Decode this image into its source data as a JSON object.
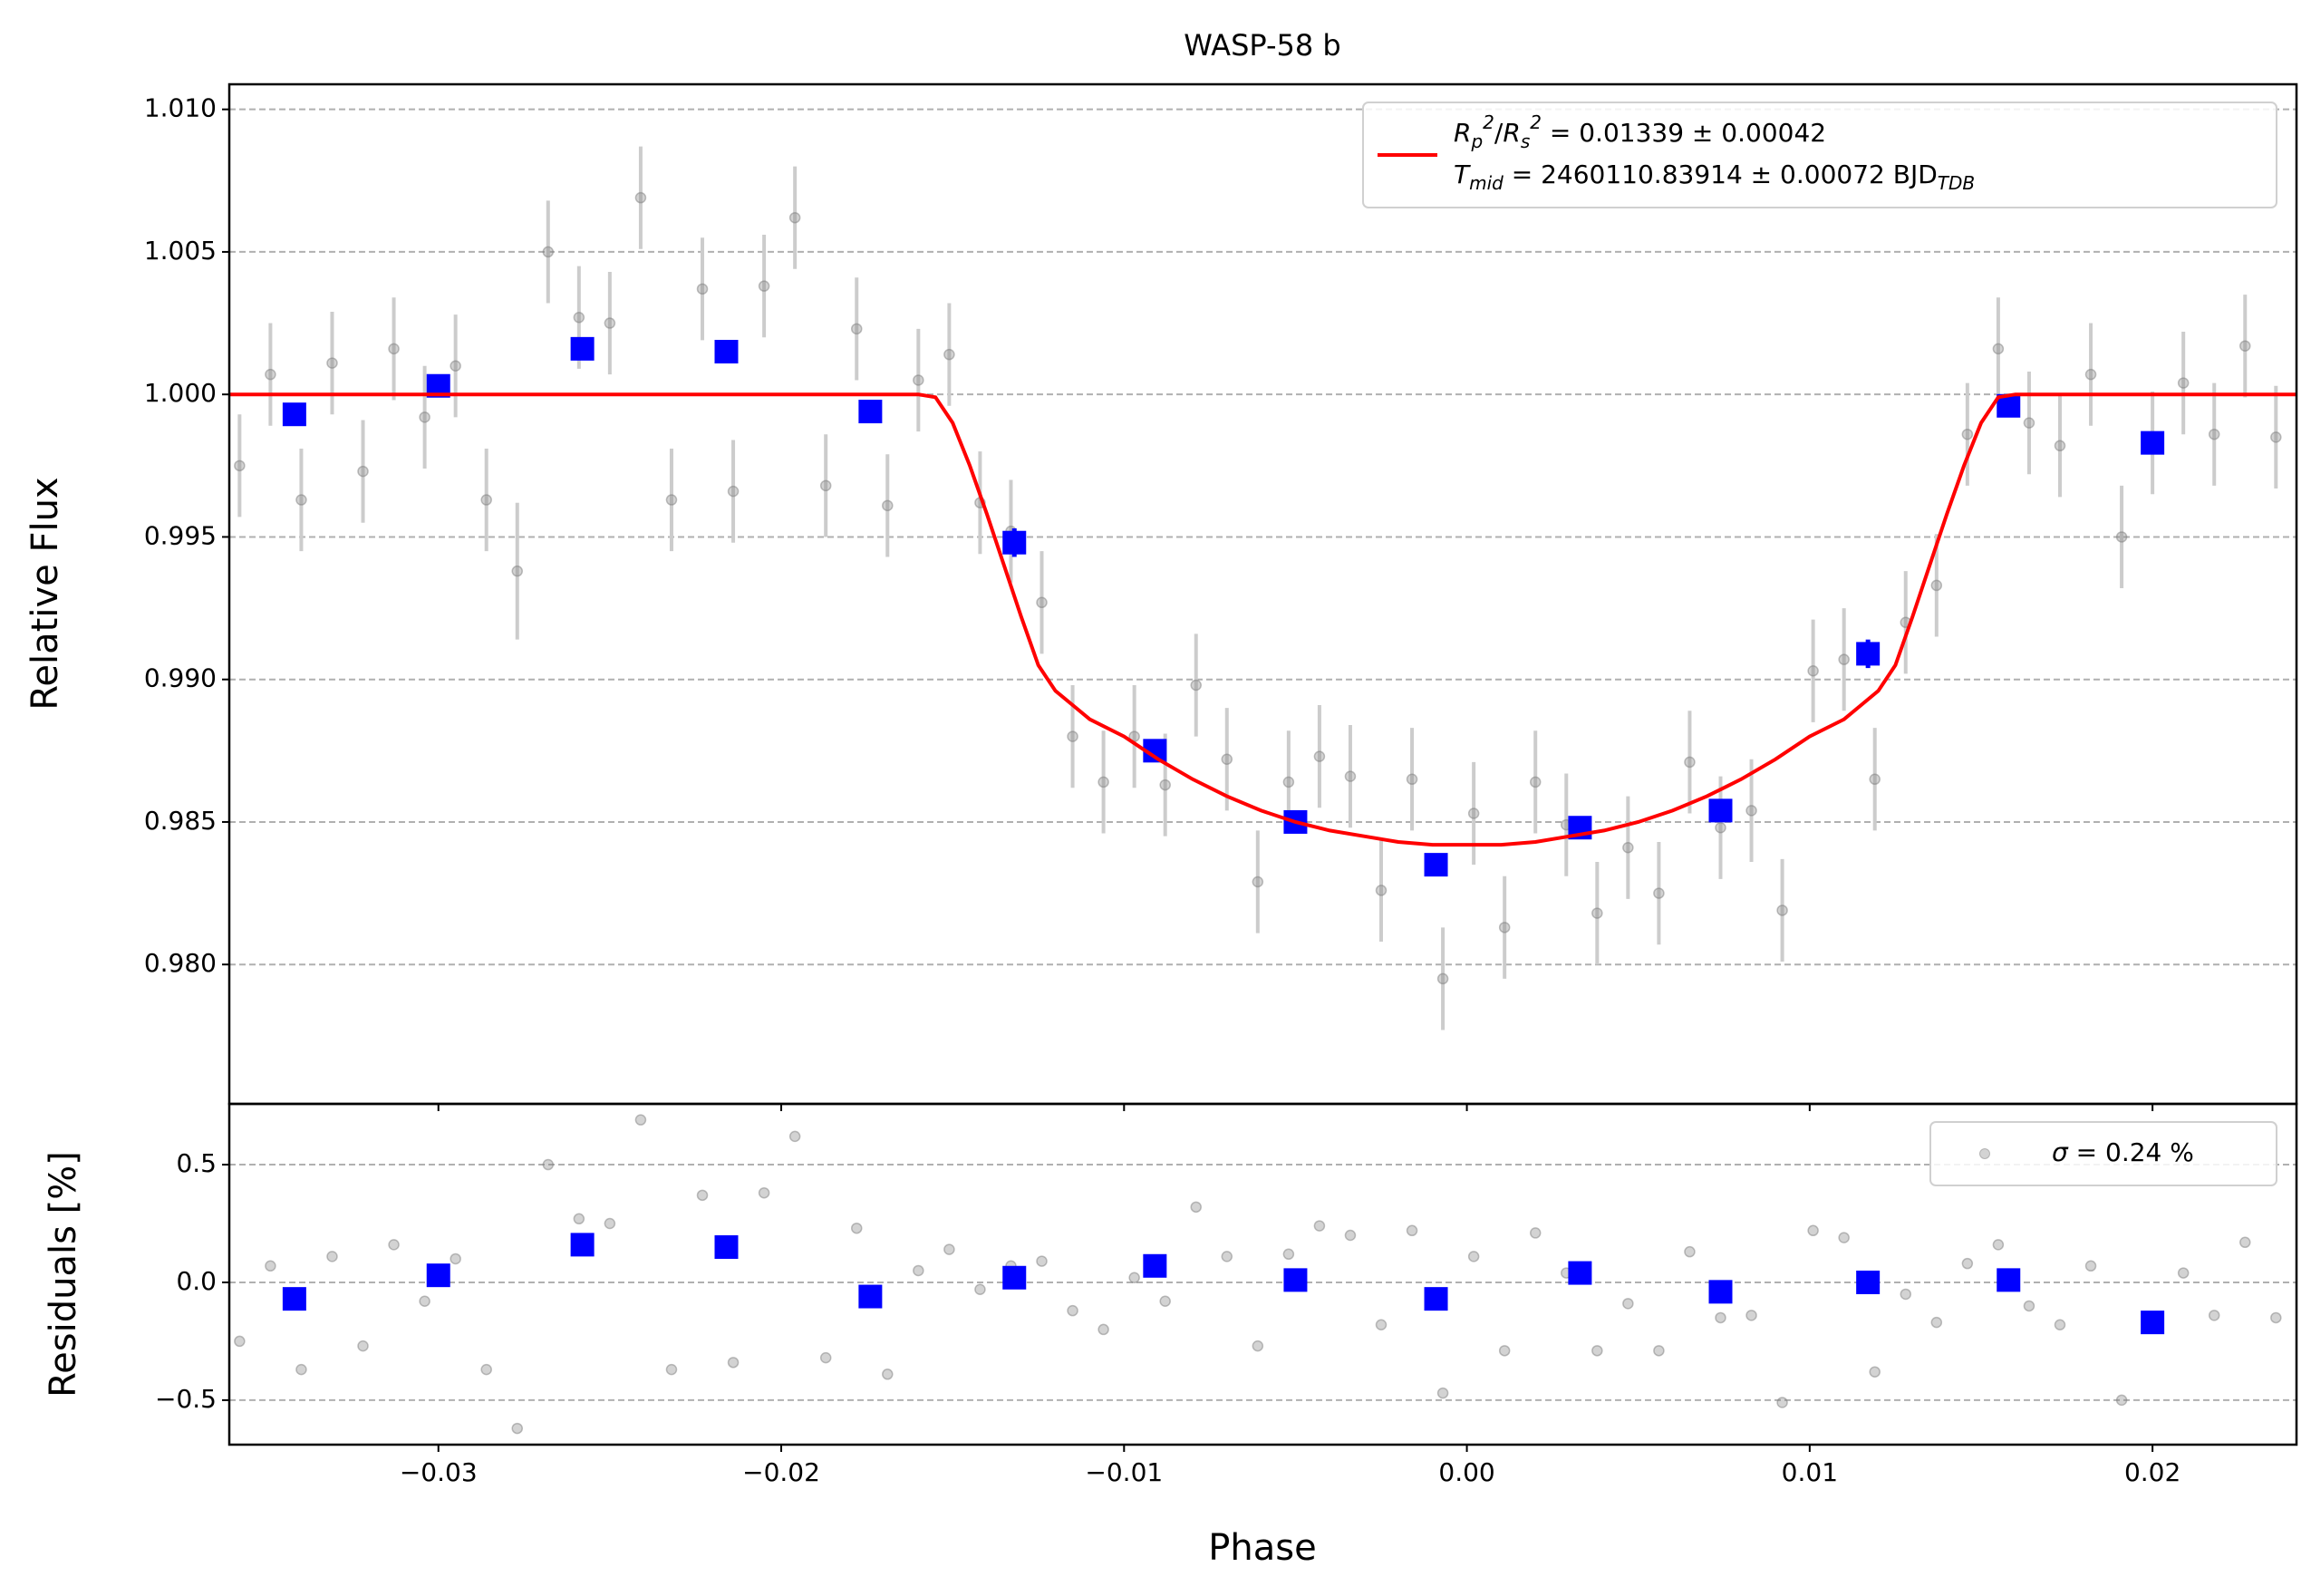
{
  "chart_data": [
    {
      "type": "scatter",
      "title": "WASP-58 b",
      "ylabel": "Relative Flux",
      "xlim": [
        -0.0361,
        0.0242
      ],
      "ylim": [
        0.97511,
        1.01088
      ],
      "xticks": [
        {
          "value": -0.03,
          "label": "−0.03"
        },
        {
          "value": -0.02,
          "label": "−0.02"
        },
        {
          "value": -0.01,
          "label": "−0.01"
        },
        {
          "value": 0,
          "label": "0.00"
        },
        0.01,
        0.02
      ],
      "yticks": [
        {
          "value": 0.98,
          "label": "0.980"
        },
        0.985,
        {
          "value": 0.99,
          "label": "0.990"
        },
        0.995,
        {
          "value": 1.0,
          "label": "1.000"
        },
        1.005,
        {
          "value": 1.01,
          "label": "1.010"
        }
      ],
      "grid": true,
      "legend": "upper right",
      "series": [
        {
          "kind": "points",
          "color": "#808080",
          "errcolor": "#cccccc",
          "x": [
            -0.0358,
            -0.0349,
            -0.034,
            -0.0331,
            -0.0322,
            -0.0313,
            -0.0304,
            -0.0295,
            -0.0286,
            -0.0277,
            -0.0268,
            -0.0259,
            -0.025,
            -0.0241,
            -0.0232,
            -0.0223,
            -0.0214,
            -0.0205,
            -0.0196,
            -0.0187,
            -0.0178,
            -0.0169,
            -0.016,
            -0.0151,
            -0.0142,
            -0.0133,
            -0.0124,
            -0.0115,
            -0.0106,
            -0.0097,
            -0.0088,
            -0.0079,
            -0.007,
            -0.0061,
            -0.0052,
            -0.0043,
            -0.0034,
            -0.0025,
            -0.0016,
            -0.0007,
            0.0002,
            0.0011,
            0.002,
            0.0029,
            0.0038,
            0.0047,
            0.0056,
            0.0065,
            0.0074,
            0.0083,
            0.0092,
            0.0101,
            0.011,
            0.0119,
            0.0128,
            0.0137,
            0.0146,
            0.0155,
            0.0164,
            0.0173,
            0.0182,
            0.0191,
            0.02,
            0.0209,
            0.0218,
            0.0227,
            0.0236
          ],
          "values": [
            0.9975,
            1.0007,
            0.9963,
            1.0011,
            0.9973,
            1.0016,
            0.9992,
            1.001,
            0.9963,
            0.9938,
            1.005,
            1.0027,
            1.0025,
            1.0069,
            0.9963,
            1.0037,
            0.9966,
            1.0038,
            1.0062,
            0.9968,
            1.0023,
            0.9961,
            1.0005,
            1.0014,
            0.9962,
            0.9952,
            0.9927,
            0.988,
            0.9864,
            0.988,
            0.9863,
            0.9898,
            0.9872,
            0.9829,
            0.9864,
            0.9873,
            0.9866,
            0.9826,
            0.9865,
            0.9795,
            0.9853,
            0.9813,
            0.9864,
            0.9849,
            0.9818,
            0.9841,
            0.9825,
            0.9871,
            0.9848,
            0.9854,
            0.9819,
            0.9903,
            0.9907,
            0.9865,
            0.992,
            0.9933,
            0.9986,
            1.0016,
            0.999,
            0.9982,
            1.0007,
            0.995,
            0.9983,
            1.0004,
            0.9986,
            1.0017,
            0.9985
          ],
          "errors": [
            0.0018,
            0.0018,
            0.0018,
            0.0018,
            0.0018,
            0.0018,
            0.0018,
            0.0018,
            0.0018,
            0.0024,
            0.0018,
            0.0018,
            0.0018,
            0.0018,
            0.0018,
            0.0018,
            0.0018,
            0.0018,
            0.0018,
            0.0018,
            0.0018,
            0.0018,
            0.0018,
            0.0018,
            0.0018,
            0.0018,
            0.0018,
            0.0018,
            0.0018,
            0.0018,
            0.0018,
            0.0018,
            0.0018,
            0.0018,
            0.0018,
            0.0018,
            0.0018,
            0.0018,
            0.0018,
            0.0018,
            0.0018,
            0.0018,
            0.0018,
            0.0018,
            0.0018,
            0.0018,
            0.0018,
            0.0018,
            0.0018,
            0.0018,
            0.0018,
            0.0018,
            0.0018,
            0.0018,
            0.0018,
            0.0018,
            0.0018,
            0.0018,
            0.0018,
            0.0018,
            0.0018,
            0.0018,
            0.0018,
            0.0018,
            0.0018,
            0.0018,
            0.0018
          ]
        },
        {
          "kind": "squares",
          "color": "#0000ff",
          "x": [
            -0.0342,
            -0.03,
            -0.0258,
            -0.0216,
            -0.0174,
            -0.0132,
            -0.0091,
            -0.005,
            -0.0009,
            0.0033,
            0.0074,
            0.0117,
            0.0158,
            0.02
          ],
          "values": [
            0.9993,
            1.0003,
            1.0016,
            1.0015,
            0.9994,
            0.9948,
            0.9875,
            0.985,
            0.9835,
            0.9848,
            0.9854,
            0.9909,
            0.9996,
            0.9983
          ],
          "errors": [
            0.0004,
            0.0004,
            0.0004,
            0.0004,
            0.0004,
            0.0005,
            0.0004,
            0.0004,
            0.0004,
            0.0004,
            0.0004,
            0.0005,
            0.0004,
            0.0004
          ]
        },
        {
          "kind": "line",
          "color": "#ff0000",
          "name": [
            [
              {
                "text": "R",
                "style": "italic"
              },
              {
                "text": "p",
                "style": "sub"
              },
              {
                "text": "2",
                "style": "sup"
              },
              {
                "text": "/",
                "style": "normal"
              },
              {
                "text": "R",
                "style": "italic"
              },
              {
                "text": "s",
                "style": "sub"
              },
              {
                "text": "2",
                "style": "sup"
              },
              {
                "text": " = 0.01339 ± 0.00042",
                "style": "normal"
              }
            ],
            [
              {
                "text": "T",
                "style": "italic"
              },
              {
                "text": "mid",
                "style": "sub"
              },
              {
                "text": " = 2460110.83914 ± 0.00072 BJD",
                "style": "normal"
              },
              {
                "text": "TDB",
                "style": "sub"
              }
            ]
          ],
          "x": [
            -0.0361,
            -0.016,
            -0.0155,
            -0.015,
            -0.0145,
            -0.014,
            -0.0135,
            -0.013,
            -0.0125,
            -0.012,
            -0.0115,
            -0.011,
            -0.01,
            -0.009,
            -0.008,
            -0.007,
            -0.006,
            -0.005,
            -0.004,
            -0.003,
            -0.002,
            -0.001,
            0,
            0.001,
            0.002,
            0.003,
            0.004,
            0.005,
            0.006,
            0.007,
            0.008,
            0.009,
            0.01,
            0.011,
            0.0115,
            0.012,
            0.0125,
            0.013,
            0.0135,
            0.014,
            0.0145,
            0.015,
            0.0155,
            0.016,
            0.0242
          ],
          "values": [
            1,
            1,
            0.9999,
            0.999,
            0.9975,
            0.9958,
            0.994,
            0.9922,
            0.9905,
            0.9896,
            0.9891,
            0.9886,
            0.988,
            0.9872,
            0.9865,
            0.9859,
            0.9854,
            0.985,
            0.9847,
            0.9845,
            0.9843,
            0.9842,
            0.9842,
            0.9842,
            0.9843,
            0.9845,
            0.9847,
            0.985,
            0.9854,
            0.9859,
            0.9865,
            0.9872,
            0.988,
            0.9886,
            0.9891,
            0.9896,
            0.9905,
            0.9922,
            0.994,
            0.9958,
            0.9975,
            0.999,
            0.9999,
            1,
            1
          ]
        }
      ]
    },
    {
      "type": "scatter",
      "xlabel": "Phase",
      "ylabel": "Residuals [%]",
      "xlim": [
        -0.0361,
        0.0242
      ],
      "ylim": [
        -0.689,
        0.758
      ],
      "xticks": [
        {
          "value": -0.03,
          "label": "−0.03"
        },
        {
          "value": -0.02,
          "label": "−0.02"
        },
        {
          "value": -0.01,
          "label": "−0.01"
        },
        {
          "value": 0,
          "label": "0.00"
        },
        0.01,
        0.02
      ],
      "yticks": [
        {
          "value": -0.5,
          "label": "−0.5"
        },
        {
          "value": 0,
          "label": "0.0"
        },
        0.5
      ],
      "grid": true,
      "legend": "upper right",
      "series": [
        {
          "kind": "points",
          "color": "#808080",
          "name": [
            [
              {
                "text": "σ",
                "style": "italic"
              },
              {
                "text": " = 0.24 %",
                "style": "normal"
              }
            ]
          ],
          "x": [
            -0.0358,
            -0.0349,
            -0.034,
            -0.0331,
            -0.0322,
            -0.0313,
            -0.0304,
            -0.0295,
            -0.0286,
            -0.0277,
            -0.0268,
            -0.0259,
            -0.025,
            -0.0241,
            -0.0232,
            -0.0223,
            -0.0214,
            -0.0205,
            -0.0196,
            -0.0187,
            -0.0178,
            -0.0169,
            -0.016,
            -0.0151,
            -0.0142,
            -0.0133,
            -0.0124,
            -0.0115,
            -0.0106,
            -0.0097,
            -0.0088,
            -0.0079,
            -0.007,
            -0.0061,
            -0.0052,
            -0.0043,
            -0.0034,
            -0.0025,
            -0.0016,
            -0.0007,
            0.0002,
            0.0011,
            0.002,
            0.0029,
            0.0038,
            0.0047,
            0.0056,
            0.0065,
            0.0074,
            0.0083,
            0.0092,
            0.0101,
            0.011,
            0.0119,
            0.0128,
            0.0137,
            0.0146,
            0.0155,
            0.0164,
            0.0173,
            0.0182,
            0.0191,
            0.02,
            0.0209,
            0.0218,
            0.0227,
            0.0236
          ],
          "values": [
            -0.25,
            0.07,
            -0.37,
            0.11,
            -0.27,
            0.16,
            -0.08,
            0.1,
            -0.37,
            -0.62,
            0.5,
            0.27,
            0.25,
            0.69,
            -0.37,
            0.37,
            -0.34,
            0.38,
            0.62,
            -0.32,
            0.23,
            -0.39,
            0.05,
            0.14,
            -0.03,
            0.07,
            0.09,
            -0.12,
            -0.2,
            0.02,
            -0.08,
            0.32,
            0.11,
            -0.27,
            0.12,
            0.24,
            0.2,
            -0.18,
            0.22,
            -0.47,
            0.11,
            -0.29,
            0.21,
            0.04,
            -0.29,
            -0.09,
            -0.29,
            0.13,
            -0.15,
            -0.14,
            -0.51,
            0.22,
            0.19,
            -0.38,
            -0.05,
            -0.17,
            0.08,
            0.16,
            -0.1,
            -0.18,
            0.07,
            -0.5,
            -0.17,
            0.04,
            -0.14,
            0.17,
            -0.15
          ]
        },
        {
          "kind": "squares",
          "color": "#0000ff",
          "x": [
            -0.0342,
            -0.03,
            -0.0258,
            -0.0216,
            -0.0174,
            -0.0132,
            -0.0091,
            -0.005,
            -0.0009,
            0.0033,
            0.0074,
            0.0117,
            0.0158,
            0.02
          ],
          "values": [
            -0.07,
            0.03,
            0.16,
            0.15,
            -0.06,
            0.02,
            0.07,
            0.01,
            -0.07,
            0.04,
            -0.04,
            0.0,
            0.01,
            -0.17
          ]
        }
      ]
    }
  ]
}
